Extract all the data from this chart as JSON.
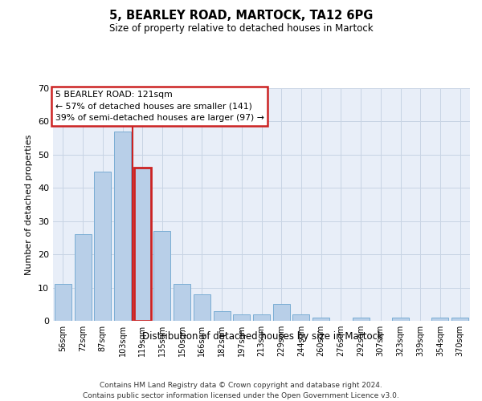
{
  "title": "5, BEARLEY ROAD, MARTOCK, TA12 6PG",
  "subtitle": "Size of property relative to detached houses in Martock",
  "xlabel": "Distribution of detached houses by size in Martock",
  "ylabel": "Number of detached properties",
  "categories": [
    "56sqm",
    "72sqm",
    "87sqm",
    "103sqm",
    "119sqm",
    "135sqm",
    "150sqm",
    "166sqm",
    "182sqm",
    "197sqm",
    "213sqm",
    "229sqm",
    "244sqm",
    "260sqm",
    "276sqm",
    "292sqm",
    "307sqm",
    "323sqm",
    "339sqm",
    "354sqm",
    "370sqm"
  ],
  "values": [
    11,
    26,
    45,
    57,
    46,
    27,
    11,
    8,
    3,
    2,
    2,
    5,
    2,
    1,
    0,
    1,
    0,
    1,
    0,
    1,
    1
  ],
  "bar_color": "#b8cfe8",
  "bar_edgecolor": "#7aadd4",
  "highlight_index": 4,
  "vline_color": "#cc2222",
  "annotation_lines": [
    "5 BEARLEY ROAD: 121sqm",
    "← 57% of detached houses are smaller (141)",
    "39% of semi-detached houses are larger (97) →"
  ],
  "annotation_box_edgecolor": "#cc2222",
  "ylim": [
    0,
    70
  ],
  "yticks": [
    0,
    10,
    20,
    30,
    40,
    50,
    60,
    70
  ],
  "grid_color": "#c8d4e4",
  "background_color": "#e8eef8",
  "footer_line1": "Contains HM Land Registry data © Crown copyright and database right 2024.",
  "footer_line2": "Contains public sector information licensed under the Open Government Licence v3.0."
}
